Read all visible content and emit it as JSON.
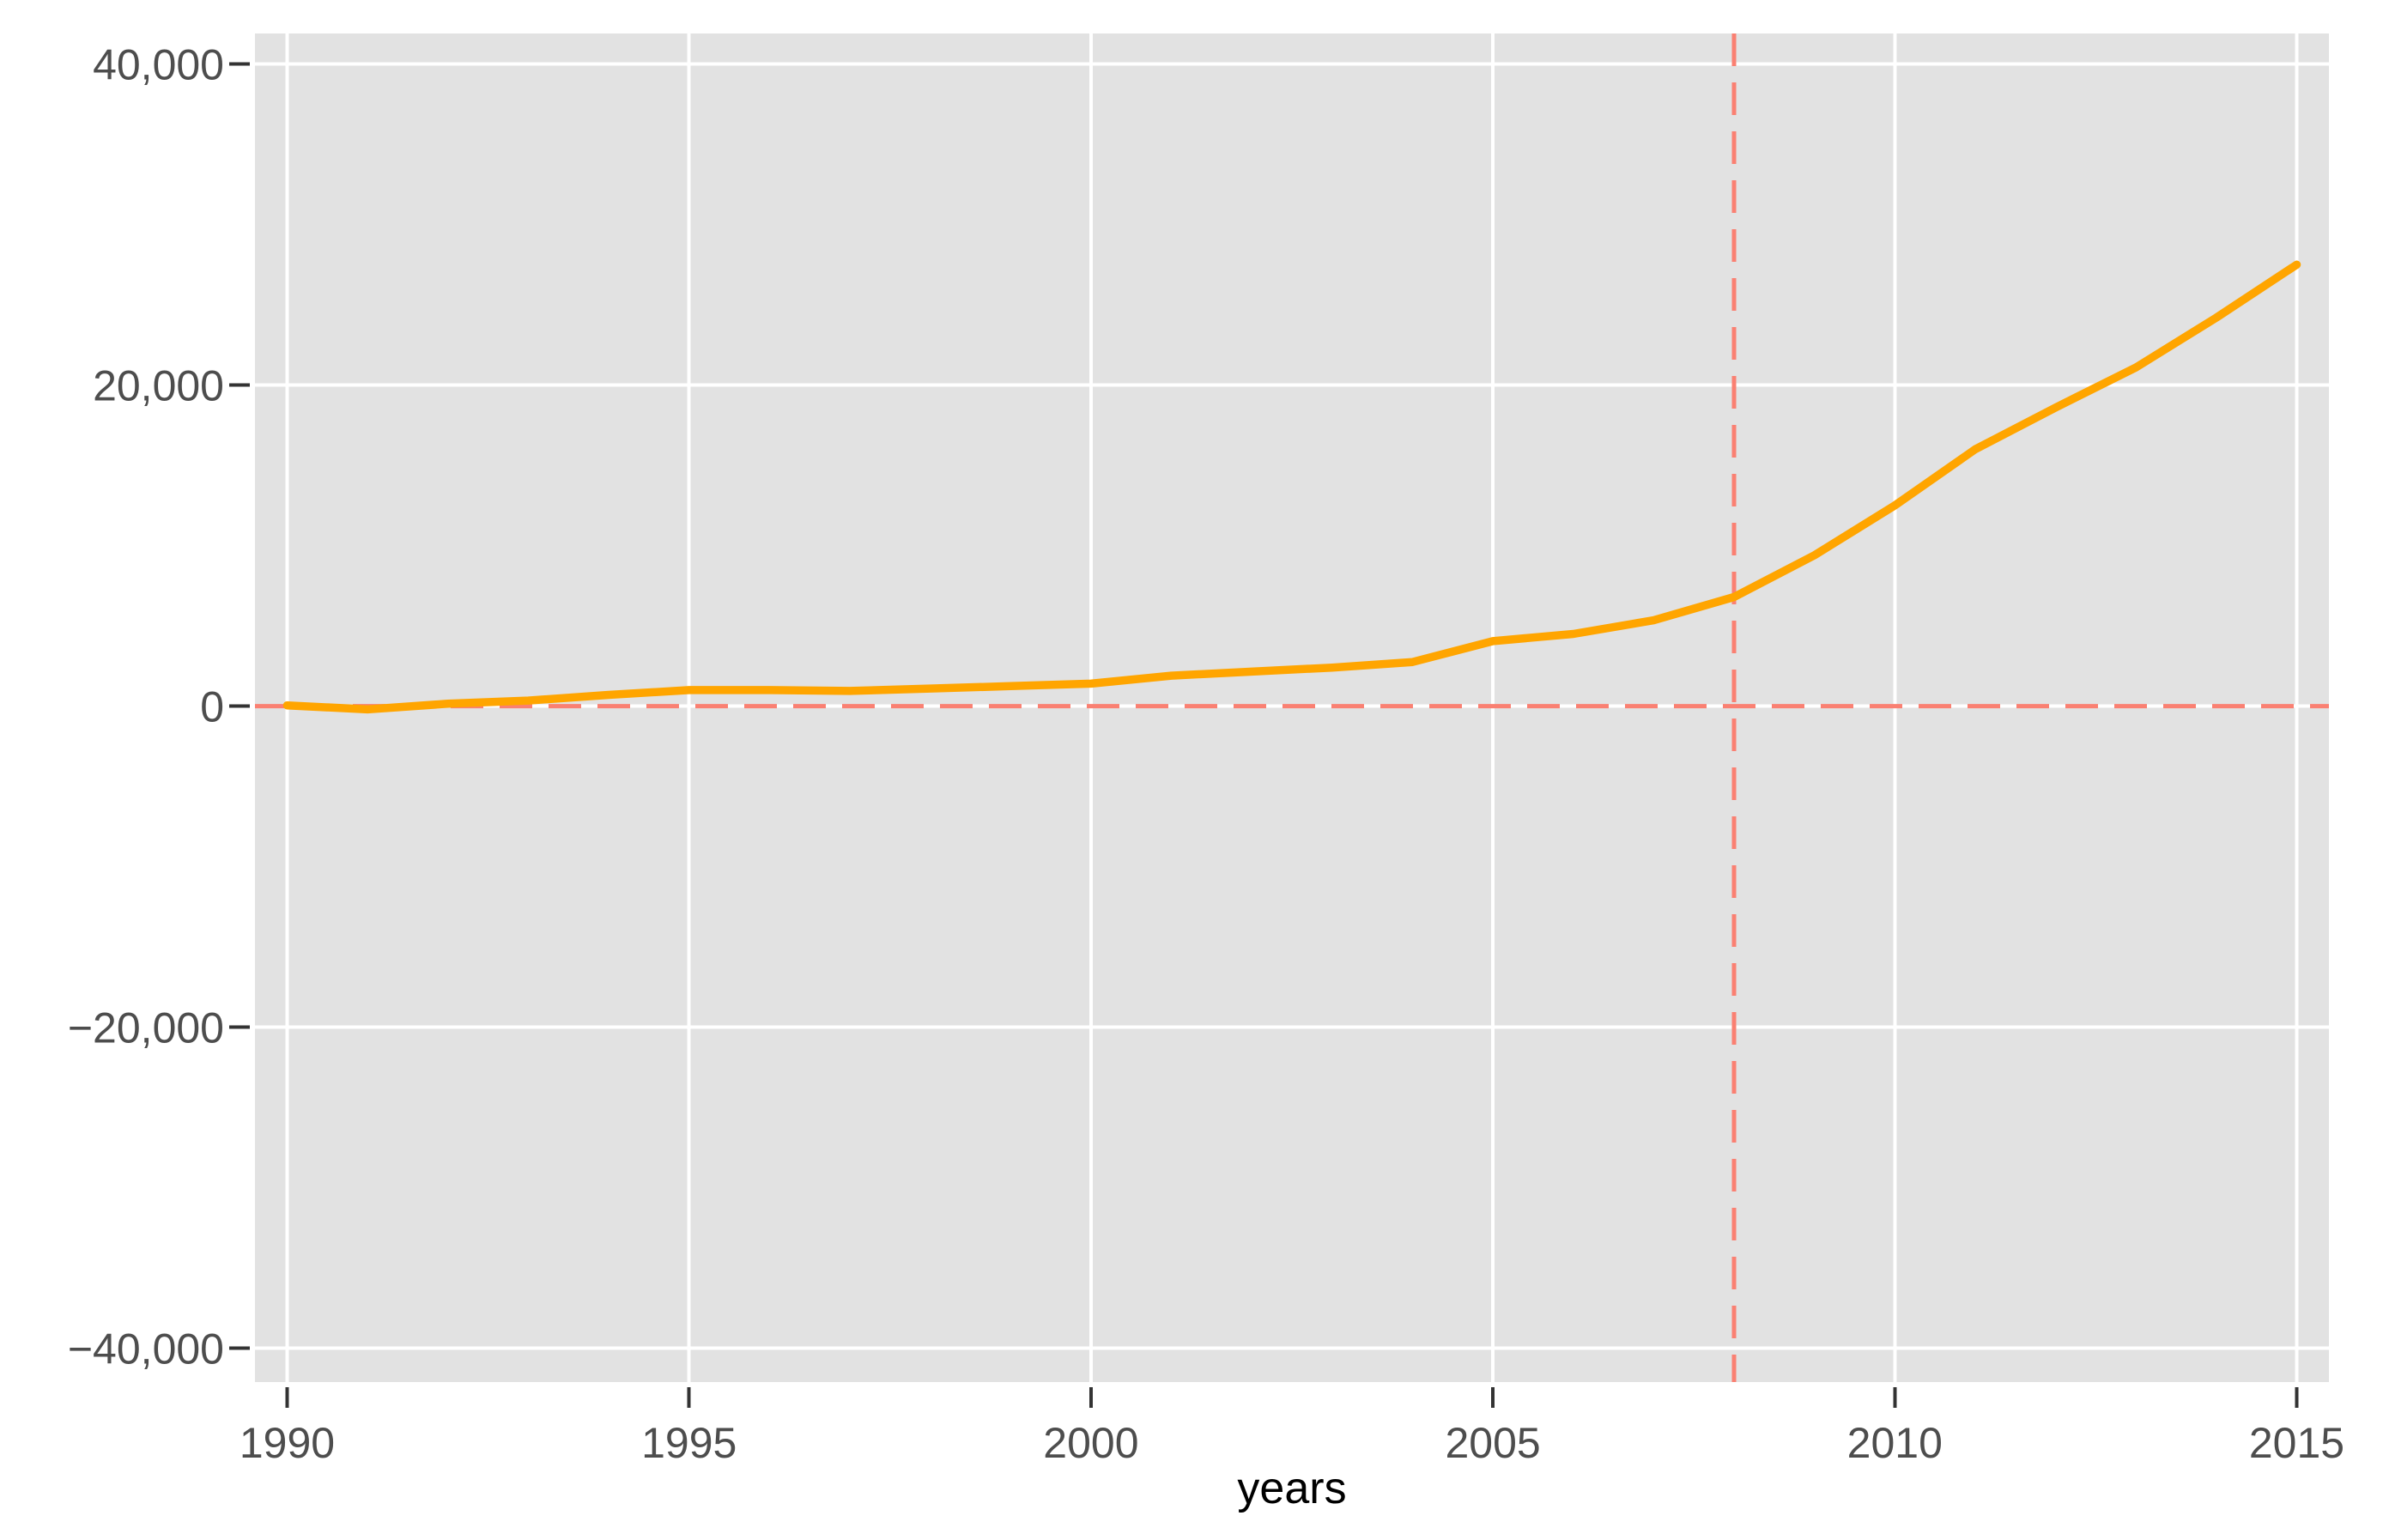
{
  "chart_data": {
    "type": "line",
    "title": "",
    "xlabel": "years",
    "ylabel": "",
    "x": [
      1990,
      1991,
      1992,
      1993,
      1994,
      1995,
      1996,
      1997,
      1998,
      1999,
      2000,
      2001,
      2002,
      2003,
      2004,
      2005,
      2006,
      2007,
      2008,
      2009,
      2010,
      2011,
      2012,
      2013,
      2014,
      2015
    ],
    "series": [
      {
        "name": "main-series",
        "color": "#FFA500",
        "values": [
          50,
          -200,
          150,
          350,
          700,
          1000,
          1000,
          950,
          1100,
          1250,
          1400,
          1900,
          2150,
          2400,
          2750,
          4050,
          4500,
          5350,
          6800,
          9400,
          12500,
          16000,
          18600,
          21100,
          24200,
          27500
        ]
      }
    ],
    "xlim": [
      1989.6,
      2015.4
    ],
    "ylim": [
      -42100,
      41900
    ],
    "x_ticks": [
      {
        "value": 1990,
        "label": "1990"
      },
      {
        "value": 1995,
        "label": "1995"
      },
      {
        "value": 2000,
        "label": "2000"
      },
      {
        "value": 2005,
        "label": "2005"
      },
      {
        "value": 2010,
        "label": "2010"
      },
      {
        "value": 2015,
        "label": "2015"
      }
    ],
    "y_ticks": [
      {
        "value": 40000,
        "label": "40,000"
      },
      {
        "value": 20000,
        "label": "20,000"
      },
      {
        "value": 0,
        "label": "0"
      },
      {
        "value": -20000,
        "label": "−20,000"
      },
      {
        "value": -40000,
        "label": "−40,000"
      }
    ],
    "reference_lines": [
      {
        "orientation": "horizontal",
        "value": 0,
        "color": "#FA8072",
        "style": "dashed"
      },
      {
        "orientation": "vertical",
        "value": 2008,
        "color": "#FA8072",
        "style": "dashed"
      }
    ],
    "grid": true,
    "legend": false,
    "colors": {
      "panel_background": "#E2E2E2",
      "gridline": "#FFFFFF",
      "tick_mark": "#333333",
      "tick_label": "#4D4D4D",
      "axis_title": "#000000",
      "line": "#FFA500",
      "reference": "#FA8072"
    }
  }
}
